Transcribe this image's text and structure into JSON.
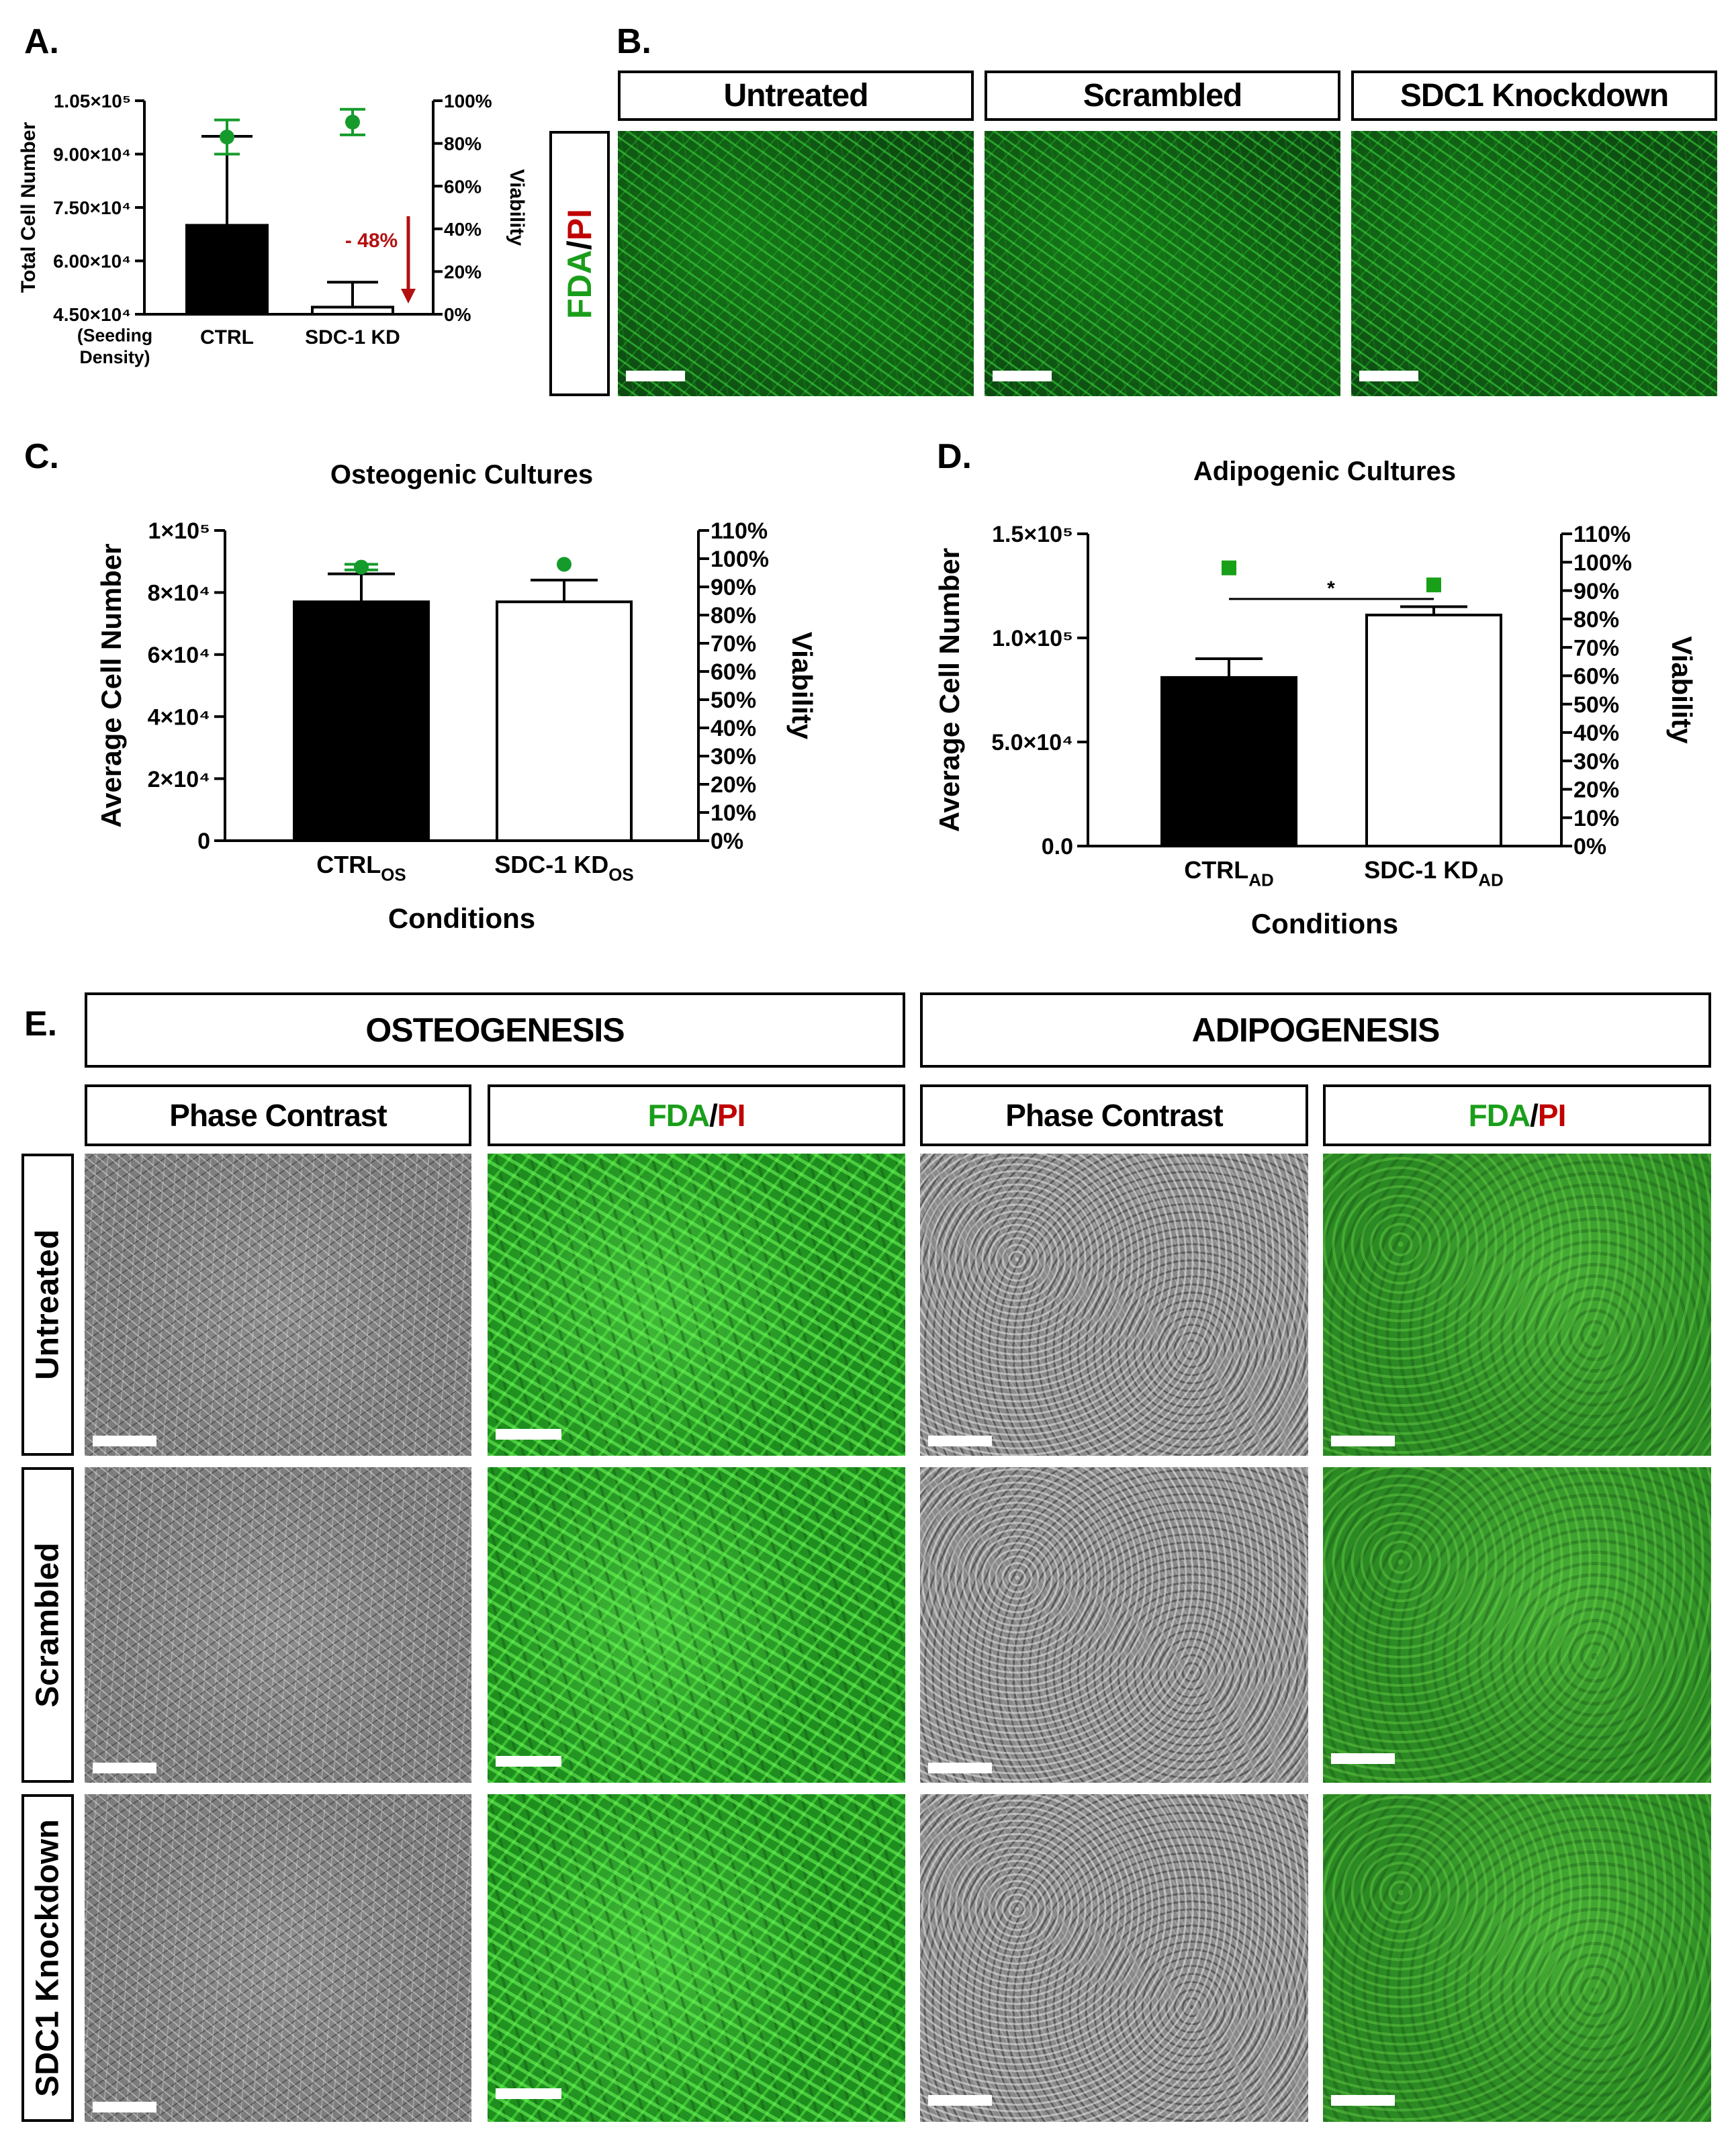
{
  "panel_labels": {
    "a": "A.",
    "b": "B.",
    "c": "C.",
    "d": "D.",
    "e": "E."
  },
  "colors": {
    "green": "#1a9e1a",
    "red": "#c00000",
    "dot_green": "#159b2b",
    "sq_green": "#18a018",
    "arrow_red": "#b31010"
  },
  "chart_data": [
    {
      "panel": "A",
      "type": "bar",
      "ylabel": "Total Cell Number",
      "y2label": "Viability",
      "yticks": [
        "4.50×10⁴",
        "6.00×10⁴",
        "7.50×10⁴",
        "9.00×10⁴",
        "1.05×10⁵"
      ],
      "yticks_sub": "(Seeding Density)",
      "y2ticks": [
        "0%",
        "20%",
        "40%",
        "60%",
        "80%",
        "100%"
      ],
      "ylim": [
        45000,
        105000
      ],
      "y2lim": [
        0,
        100
      ],
      "categories": [
        "CTRL",
        "SDC-1 KD"
      ],
      "values": [
        70000,
        47000
      ],
      "errors": [
        25000,
        7000
      ],
      "viability": [
        83,
        90
      ],
      "viability_err": [
        8,
        6
      ],
      "annotation": "- 48%"
    },
    {
      "panel": "C",
      "type": "bar",
      "title": "Osteogenic Cultures",
      "xlabel": "Conditions",
      "ylabel": "Average Cell Number",
      "y2label": "Viability",
      "yticks": [
        "0",
        "2×10⁴",
        "4×10⁴",
        "6×10⁴",
        "8×10⁴",
        "1×10⁵"
      ],
      "y2ticks": [
        "0%",
        "10%",
        "20%",
        "30%",
        "40%",
        "50%",
        "60%",
        "70%",
        "80%",
        "90%",
        "100%",
        "110%"
      ],
      "ylim": [
        0,
        100000
      ],
      "y2lim": [
        0,
        110
      ],
      "categories": [
        "CTRL",
        "SDC-1 KD"
      ],
      "category_subscripts": [
        "OS",
        "OS"
      ],
      "values": [
        77000,
        77000
      ],
      "errors": [
        9000,
        7000
      ],
      "viability": [
        97,
        98
      ],
      "viability_err": [
        1,
        0
      ]
    },
    {
      "panel": "D",
      "type": "bar",
      "title": "Adipogenic Cultures",
      "xlabel": "Conditions",
      "ylabel": "Average Cell Number",
      "y2label": "Viability",
      "yticks": [
        "0.0",
        "5.0×10⁴",
        "1.0×10⁵",
        "1.5×10⁵"
      ],
      "y2ticks": [
        "0%",
        "10%",
        "20%",
        "30%",
        "40%",
        "50%",
        "60%",
        "70%",
        "80%",
        "90%",
        "100%",
        "110%"
      ],
      "ylim": [
        0,
        150000
      ],
      "y2lim": [
        0,
        110
      ],
      "categories": [
        "CTRL",
        "SDC-1 KD"
      ],
      "category_subscripts": [
        "AD",
        "AD"
      ],
      "values": [
        81000,
        111000
      ],
      "errors": [
        9000,
        4000
      ],
      "viability": [
        98,
        92
      ],
      "significance": "*"
    }
  ],
  "panel_b": {
    "headers": [
      "Untreated",
      "Scrambled",
      "SDC1 Knockdown"
    ],
    "stain_fda": "FDA",
    "stain_sep": "/",
    "stain_pi": "PI"
  },
  "panel_e": {
    "groups": [
      "OSTEOGENESIS",
      "ADIPOGENESIS"
    ],
    "sub_phase": "Phase Contrast",
    "stain_fda": "FDA",
    "stain_sep": "/",
    "stain_pi": "PI",
    "rows": [
      "Untreated",
      "Scrambled",
      "SDC1 Knockdown"
    ]
  }
}
